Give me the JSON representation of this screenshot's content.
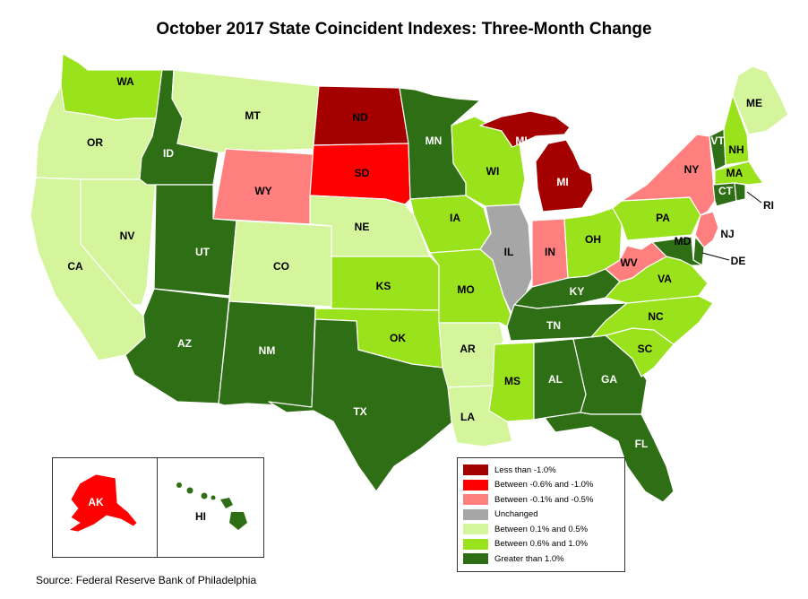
{
  "title": "October 2017 State Coincident Indexes: Three-Month Change",
  "source": "Source: Federal Reserve Bank of Philadelphia",
  "colors": {
    "lt_neg1": "#a50000",
    "neg06_neg1": "#ff0000",
    "neg01_neg05": "#ff7f7f",
    "unchanged": "#a6a6a6",
    "p01_p05": "#d4f59b",
    "p06_p1": "#99e21c",
    "gt_p1": "#2e6e14"
  },
  "legend": [
    {
      "label": "Less than -1.0%",
      "color": "#a50000"
    },
    {
      "label": "Between -0.6% and -1.0%",
      "color": "#ff0000"
    },
    {
      "label": "Between -0.1% and -0.5%",
      "color": "#ff7f7f"
    },
    {
      "label": "Unchanged",
      "color": "#a6a6a6"
    },
    {
      "label": "Between 0.1% and 0.5%",
      "color": "#d4f59b"
    },
    {
      "label": "Between 0.6% and 1.0%",
      "color": "#99e21c"
    },
    {
      "label": "Greater than 1.0%",
      "color": "#2e6e14"
    }
  ],
  "states": {
    "WA": "p06_p1",
    "OR": "p01_p05",
    "CA": "p01_p05",
    "NV": "p01_p05",
    "ID": "gt_p1",
    "MT": "p01_p05",
    "WY": "neg01_neg05",
    "UT": "gt_p1",
    "CO": "p01_p05",
    "AZ": "gt_p1",
    "NM": "gt_p1",
    "ND": "lt_neg1",
    "SD": "neg06_neg1",
    "NE": "p01_p05",
    "KS": "p06_p1",
    "OK": "p06_p1",
    "TX": "gt_p1",
    "MN": "gt_p1",
    "IA": "p06_p1",
    "MO": "p06_p1",
    "AR": "p01_p05",
    "LA": "p01_p05",
    "WI": "p06_p1",
    "IL": "unchanged",
    "MI": "lt_neg1",
    "IN": "neg01_neg05",
    "OH": "p06_p1",
    "KY": "gt_p1",
    "TN": "gt_p1",
    "MS": "p06_p1",
    "AL": "gt_p1",
    "GA": "gt_p1",
    "FL": "gt_p1",
    "SC": "p06_p1",
    "NC": "p06_p1",
    "VA": "p06_p1",
    "WV": "neg01_neg05",
    "PA": "p06_p1",
    "NY": "neg01_neg05",
    "VT": "gt_p1",
    "NH": "p06_p1",
    "ME": "p01_p05",
    "MA": "p06_p1",
    "RI": "gt_p1",
    "CT": "gt_p1",
    "NJ": "neg01_neg05",
    "DE": "gt_p1",
    "MD": "gt_p1",
    "AK": "neg06_neg1",
    "HI": "gt_p1"
  },
  "labels": {
    "WA": "WA",
    "OR": "OR",
    "CA": "CA",
    "NV": "NV",
    "ID": "ID",
    "MT": "MT",
    "WY": "WY",
    "UT": "UT",
    "CO": "CO",
    "AZ": "AZ",
    "NM": "NM",
    "ND": "ND",
    "SD": "SD",
    "NE": "NE",
    "KS": "KS",
    "OK": "OK",
    "TX": "TX",
    "MN": "MN",
    "IA": "IA",
    "MO": "MO",
    "AR": "AR",
    "LA": "LA",
    "WI": "WI",
    "IL": "IL",
    "MI": "MI",
    "MI_UP": "MI",
    "IN": "IN",
    "OH": "OH",
    "KY": "KY",
    "TN": "TN",
    "MS": "MS",
    "AL": "AL",
    "GA": "GA",
    "FL": "FL",
    "SC": "SC",
    "NC": "NC",
    "VA": "VA",
    "WV": "WV",
    "PA": "PA",
    "NY": "NY",
    "VT": "VT",
    "NH": "NH",
    "ME": "ME",
    "MA": "MA",
    "RI": "RI",
    "CT": "CT",
    "NJ": "NJ",
    "DE": "DE",
    "MD": "MD",
    "AK": "AK",
    "HI": "HI"
  }
}
